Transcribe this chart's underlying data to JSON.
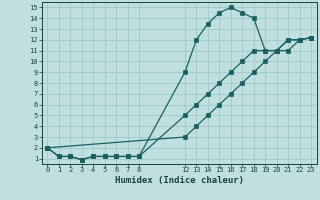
{
  "xlabel": "Humidex (Indice chaleur)",
  "bg_color": "#c0e0e0",
  "grid_color": "#a0c8c8",
  "line_color": "#1a6060",
  "xlim": [
    -0.5,
    23.5
  ],
  "ylim": [
    0.5,
    15.5
  ],
  "xtick_positions": [
    0,
    1,
    2,
    3,
    4,
    5,
    6,
    7,
    8,
    12,
    13,
    14,
    15,
    16,
    17,
    18,
    19,
    20,
    21,
    22,
    23
  ],
  "xtick_labels": [
    "0",
    "1",
    "2",
    "3",
    "4",
    "5",
    "6",
    "7",
    "8",
    "12",
    "13",
    "14",
    "15",
    "16",
    "17",
    "18",
    "19",
    "20",
    "21",
    "22",
    "23"
  ],
  "ytick_positions": [
    1,
    2,
    3,
    4,
    5,
    6,
    7,
    8,
    9,
    10,
    11,
    12,
    13,
    14,
    15
  ],
  "ytick_labels": [
    "1",
    "2",
    "3",
    "4",
    "5",
    "6",
    "7",
    "8",
    "9",
    "10",
    "11",
    "12",
    "13",
    "14",
    "15"
  ],
  "grid_x": [
    0,
    1,
    2,
    3,
    4,
    5,
    6,
    7,
    8,
    12,
    13,
    14,
    15,
    16,
    17,
    18,
    19,
    20,
    21,
    22,
    23
  ],
  "grid_y": [
    1,
    2,
    3,
    4,
    5,
    6,
    7,
    8,
    9,
    10,
    11,
    12,
    13,
    14,
    15
  ],
  "line1_x": [
    0,
    1,
    2,
    3,
    4,
    5,
    6,
    7,
    8,
    12,
    13,
    14,
    15,
    16,
    17,
    18,
    19,
    20,
    21,
    22,
    23
  ],
  "line1_y": [
    2,
    1.2,
    1.2,
    0.9,
    1.2,
    1.2,
    1.2,
    1.2,
    1.2,
    9,
    12,
    13.5,
    14.5,
    15,
    14.5,
    14,
    11,
    11,
    12,
    12,
    12.2
  ],
  "line2_x": [
    0,
    1,
    2,
    3,
    4,
    5,
    6,
    7,
    8,
    12,
    13,
    14,
    15,
    16,
    17,
    18,
    19,
    20,
    21,
    22,
    23
  ],
  "line2_y": [
    2,
    1.2,
    1.2,
    0.9,
    1.2,
    1.2,
    1.2,
    1.2,
    1.2,
    5,
    6,
    7,
    8,
    9,
    10,
    11,
    11,
    11,
    11,
    12,
    12.2
  ],
  "line3_x": [
    0,
    12,
    13,
    14,
    15,
    16,
    17,
    18,
    19,
    20,
    21,
    22,
    23
  ],
  "line3_y": [
    2,
    3,
    4,
    5,
    6,
    7,
    8,
    9,
    10,
    11,
    12,
    12,
    12.2
  ]
}
